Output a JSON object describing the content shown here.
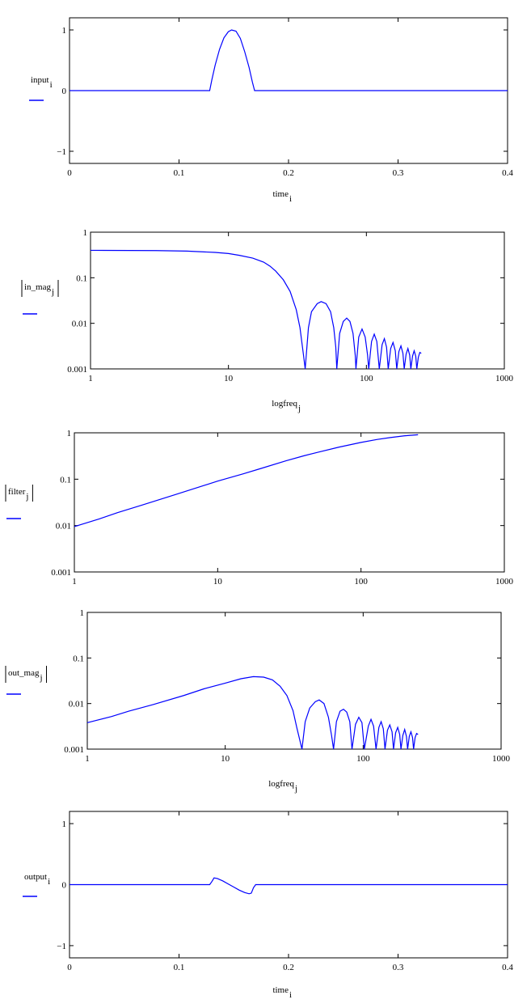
{
  "colors": {
    "trace": "#0000ff",
    "axes": "#000000"
  },
  "chart_data": [
    {
      "type": "line",
      "ylabel": "input",
      "ylabel_sub": "i",
      "xlabel": "time",
      "xlabel_sub": "i",
      "xscale": "linear",
      "yscale": "linear",
      "xlim": [
        0,
        0.4
      ],
      "ylim": [
        -1.2,
        1.2
      ],
      "xticks": [
        0,
        0.1,
        0.2,
        0.3,
        0.4
      ],
      "xticklabels": [
        "0",
        "0.1",
        "0.2",
        "0.3",
        "0.4"
      ],
      "yticks": [
        -1,
        0,
        1
      ],
      "yticklabels": [
        "−1",
        "0",
        "1"
      ],
      "abs_bars": false,
      "grid": false,
      "series": [
        {
          "values": [
            [
              0,
              0
            ],
            [
              0.128,
              0
            ],
            [
              0.13,
              0.18
            ],
            [
              0.133,
              0.42
            ],
            [
              0.137,
              0.68
            ],
            [
              0.141,
              0.87
            ],
            [
              0.145,
              0.97
            ],
            [
              0.148,
              1.0
            ],
            [
              0.152,
              0.98
            ],
            [
              0.156,
              0.86
            ],
            [
              0.16,
              0.64
            ],
            [
              0.164,
              0.38
            ],
            [
              0.167,
              0.14
            ],
            [
              0.169,
              0
            ],
            [
              0.4,
              0
            ]
          ]
        }
      ]
    },
    {
      "type": "line",
      "ylabel": "in_mag",
      "ylabel_sub": "j",
      "xlabel": "logfreq",
      "xlabel_sub": "j",
      "xscale": "log",
      "yscale": "log",
      "xlim": [
        1,
        1000
      ],
      "ylim": [
        0.001,
        1
      ],
      "xticks": [
        1,
        10,
        100,
        1000
      ],
      "xticklabels": [
        "1",
        "10",
        "100",
        "1000"
      ],
      "yticks": [
        0.001,
        0.01,
        0.1,
        1
      ],
      "yticklabels": [
        "0.001",
        "0.01",
        "0.1",
        "1"
      ],
      "abs_bars": true,
      "grid": false,
      "series": [
        {
          "values": [
            [
              1,
              0.4
            ],
            [
              3,
              0.395
            ],
            [
              5,
              0.385
            ],
            [
              8,
              0.36
            ],
            [
              10,
              0.34
            ],
            [
              12,
              0.31
            ],
            [
              15,
              0.27
            ],
            [
              18,
              0.22
            ],
            [
              20,
              0.18
            ],
            [
              22,
              0.14
            ],
            [
              25,
              0.09
            ],
            [
              28,
              0.05
            ],
            [
              31,
              0.02
            ],
            [
              33,
              0.008
            ],
            [
              35,
              0.002
            ],
            [
              36,
              0.001
            ],
            [
              38,
              0.008
            ],
            [
              40,
              0.018
            ],
            [
              44,
              0.027
            ],
            [
              47,
              0.03
            ],
            [
              51,
              0.027
            ],
            [
              55,
              0.018
            ],
            [
              58,
              0.008
            ],
            [
              60,
              0.003
            ],
            [
              61,
              0.001
            ],
            [
              64,
              0.006
            ],
            [
              68,
              0.011
            ],
            [
              72,
              0.013
            ],
            [
              76,
              0.011
            ],
            [
              80,
              0.006
            ],
            [
              83,
              0.002
            ],
            [
              84,
              0.001
            ],
            [
              88,
              0.005
            ],
            [
              93,
              0.0075
            ],
            [
              98,
              0.005
            ],
            [
              102,
              0.002
            ],
            [
              104,
              0.001
            ],
            [
              109,
              0.004
            ],
            [
              114,
              0.0058
            ],
            [
              119,
              0.004
            ],
            [
              124,
              0.001
            ],
            [
              130,
              0.0034
            ],
            [
              135,
              0.0046
            ],
            [
              140,
              0.003
            ],
            [
              144,
              0.001
            ],
            [
              150,
              0.0028
            ],
            [
              156,
              0.0038
            ],
            [
              162,
              0.0025
            ],
            [
              166,
              0.001
            ],
            [
              172,
              0.0024
            ],
            [
              178,
              0.0032
            ],
            [
              184,
              0.0022
            ],
            [
              188,
              0.001
            ],
            [
              194,
              0.0021
            ],
            [
              200,
              0.0028
            ],
            [
              206,
              0.002
            ],
            [
              210,
              0.001
            ],
            [
              216,
              0.0019
            ],
            [
              222,
              0.0025
            ],
            [
              228,
              0.0019
            ],
            [
              232,
              0.001
            ],
            [
              238,
              0.0018
            ],
            [
              244,
              0.0023
            ],
            [
              250,
              0.0022
            ]
          ]
        }
      ]
    },
    {
      "type": "line",
      "ylabel": "filter",
      "ylabel_sub": "j",
      "xlabel": "",
      "xlabel_sub": "",
      "xscale": "log",
      "yscale": "log",
      "xlim": [
        1,
        1000
      ],
      "ylim": [
        0.001,
        1
      ],
      "xticks": [
        1,
        10,
        100,
        1000
      ],
      "xticklabels": [
        "1",
        "10",
        "100",
        "1000"
      ],
      "yticks": [
        0.001,
        0.01,
        0.1,
        1
      ],
      "yticklabels": [
        "0.001",
        "0.01",
        "0.1",
        "1"
      ],
      "abs_bars": true,
      "grid": false,
      "series": [
        {
          "values": [
            [
              1,
              0.0095
            ],
            [
              1.5,
              0.014
            ],
            [
              2,
              0.019
            ],
            [
              3,
              0.028
            ],
            [
              5,
              0.046
            ],
            [
              7,
              0.064
            ],
            [
              10,
              0.091
            ],
            [
              15,
              0.13
            ],
            [
              20,
              0.17
            ],
            [
              30,
              0.25
            ],
            [
              40,
              0.32
            ],
            [
              50,
              0.38
            ],
            [
              70,
              0.49
            ],
            [
              100,
              0.62
            ],
            [
              130,
              0.72
            ],
            [
              160,
              0.79
            ],
            [
              200,
              0.86
            ],
            [
              250,
              0.91
            ]
          ]
        }
      ]
    },
    {
      "type": "line",
      "ylabel": "out_mag",
      "ylabel_sub": "j",
      "xlabel": "logfreq",
      "xlabel_sub": "j",
      "xscale": "log",
      "yscale": "log",
      "xlim": [
        1,
        1000
      ],
      "ylim": [
        0.001,
        1
      ],
      "xticks": [
        1,
        10,
        100,
        1000
      ],
      "xticklabels": [
        "1",
        "10",
        "100",
        "1000"
      ],
      "yticks": [
        0.001,
        0.01,
        0.1,
        1
      ],
      "yticklabels": [
        "0.001",
        "0.01",
        "0.1",
        "1"
      ],
      "abs_bars": true,
      "grid": false,
      "series": [
        {
          "values": [
            [
              1,
              0.0038
            ],
            [
              1.5,
              0.0052
            ],
            [
              2,
              0.0068
            ],
            [
              3,
              0.0095
            ],
            [
              5,
              0.015
            ],
            [
              7,
              0.021
            ],
            [
              10,
              0.028
            ],
            [
              13,
              0.035
            ],
            [
              16,
              0.039
            ],
            [
              19,
              0.038
            ],
            [
              22,
              0.033
            ],
            [
              25,
              0.024
            ],
            [
              28,
              0.015
            ],
            [
              31,
              0.007
            ],
            [
              33,
              0.003
            ],
            [
              36,
              0.001
            ],
            [
              38,
              0.004
            ],
            [
              41,
              0.008
            ],
            [
              45,
              0.011
            ],
            [
              48,
              0.012
            ],
            [
              52,
              0.01
            ],
            [
              56,
              0.005
            ],
            [
              59,
              0.002
            ],
            [
              61,
              0.001
            ],
            [
              64,
              0.004
            ],
            [
              68,
              0.0068
            ],
            [
              72,
              0.0075
            ],
            [
              76,
              0.0065
            ],
            [
              80,
              0.004
            ],
            [
              83,
              0.001
            ],
            [
              88,
              0.0035
            ],
            [
              93,
              0.005
            ],
            [
              98,
              0.0038
            ],
            [
              102,
              0.001
            ],
            [
              109,
              0.0032
            ],
            [
              114,
              0.0045
            ],
            [
              119,
              0.0032
            ],
            [
              124,
              0.001
            ],
            [
              130,
              0.003
            ],
            [
              135,
              0.004
            ],
            [
              140,
              0.0028
            ],
            [
              144,
              0.001
            ],
            [
              150,
              0.0026
            ],
            [
              156,
              0.0034
            ],
            [
              162,
              0.0024
            ],
            [
              166,
              0.001
            ],
            [
              172,
              0.0023
            ],
            [
              178,
              0.003
            ],
            [
              184,
              0.0021
            ],
            [
              188,
              0.001
            ],
            [
              194,
              0.002
            ],
            [
              200,
              0.0027
            ],
            [
              206,
              0.0019
            ],
            [
              210,
              0.001
            ],
            [
              216,
              0.0019
            ],
            [
              222,
              0.0024
            ],
            [
              228,
              0.0018
            ],
            [
              232,
              0.001
            ],
            [
              238,
              0.0018
            ],
            [
              244,
              0.0022
            ],
            [
              250,
              0.0021
            ]
          ]
        }
      ]
    },
    {
      "type": "line",
      "ylabel": "output",
      "ylabel_sub": "i",
      "xlabel": "time",
      "xlabel_sub": "i",
      "xscale": "linear",
      "yscale": "linear",
      "xlim": [
        0,
        0.4
      ],
      "ylim": [
        -1.2,
        1.2
      ],
      "xticks": [
        0,
        0.1,
        0.2,
        0.3,
        0.4
      ],
      "xticklabels": [
        "0",
        "0.1",
        "0.2",
        "0.3",
        "0.4"
      ],
      "yticks": [
        -1,
        0,
        1
      ],
      "yticklabels": [
        "−1",
        "0",
        "1"
      ],
      "abs_bars": false,
      "grid": false,
      "series": [
        {
          "values": [
            [
              0,
              0
            ],
            [
              0.128,
              0
            ],
            [
              0.13,
              0.05
            ],
            [
              0.132,
              0.11
            ],
            [
              0.135,
              0.1
            ],
            [
              0.14,
              0.06
            ],
            [
              0.145,
              0.01
            ],
            [
              0.15,
              -0.04
            ],
            [
              0.155,
              -0.09
            ],
            [
              0.16,
              -0.13
            ],
            [
              0.164,
              -0.15
            ],
            [
              0.166,
              -0.14
            ],
            [
              0.168,
              -0.05
            ],
            [
              0.17,
              0
            ],
            [
              0.4,
              0
            ]
          ]
        }
      ]
    }
  ]
}
